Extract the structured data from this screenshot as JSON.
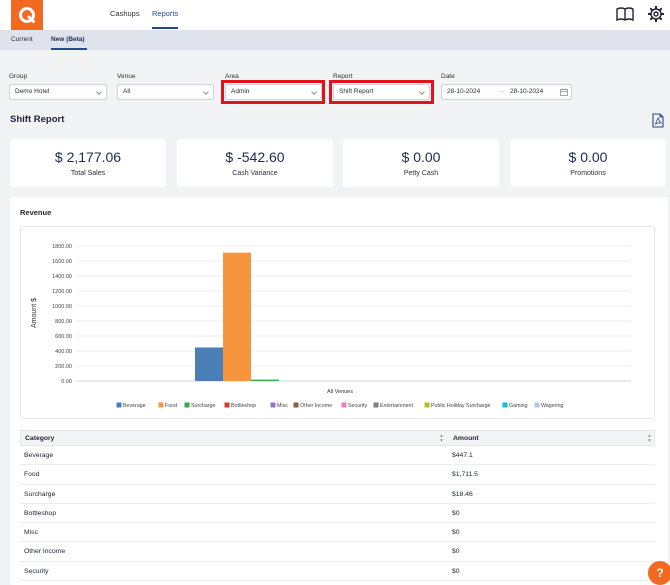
{
  "nav": {
    "items": [
      {
        "label": "Cashups"
      },
      {
        "label": "Reports"
      }
    ]
  },
  "subtabs": [
    {
      "label": "Current"
    },
    {
      "label": "New (Beta)"
    }
  ],
  "filters": {
    "group": {
      "label": "Group",
      "value": "Demo Hotel"
    },
    "venue": {
      "label": "Venue",
      "value": "All"
    },
    "area": {
      "label": "Area",
      "value": "Admin"
    },
    "report": {
      "label": "Report",
      "value": "Shift Report"
    },
    "date": {
      "label": "Date",
      "from": "28-10-2024",
      "arrow": "→",
      "to": "28-10-2024"
    }
  },
  "report_title": "Shift Report",
  "kpis": [
    {
      "value": "$ 2,177.06",
      "label": "Total Sales"
    },
    {
      "value": "$ -542.60",
      "label": "Cash Variance"
    },
    {
      "value": "$ 0.00",
      "label": "Petty Cash"
    },
    {
      "value": "$ 0.00",
      "label": "Promotions"
    }
  ],
  "revenue": {
    "title": "Revenue",
    "table": {
      "headers": [
        "Category",
        "Amount"
      ],
      "rows": [
        [
          "Beverage",
          "$447.1"
        ],
        [
          "Food",
          "$1,711.5"
        ],
        [
          "Surcharge",
          "$18.46"
        ],
        [
          "Bottleshop",
          "$0"
        ],
        [
          "Misc",
          "$0"
        ],
        [
          "Other Income",
          "$0"
        ],
        [
          "Security",
          "$0"
        ]
      ]
    }
  },
  "help_label": "?",
  "chart_data": {
    "type": "bar",
    "categories": [
      "All Venues"
    ],
    "ylabel": "Amount $",
    "xlabel": "All Venues",
    "ylim": [
      0,
      1800
    ],
    "yticks": [
      "0.00",
      "200.00",
      "400.00",
      "600.00",
      "800.00",
      "1000.00",
      "1200.00",
      "1400.00",
      "1600.00",
      "1800.00"
    ],
    "legend_position": "bottom",
    "series": [
      {
        "name": "Beverage",
        "values": [
          447.1
        ],
        "color": "#4a7fb5"
      },
      {
        "name": "Food",
        "values": [
          1711.5
        ],
        "color": "#f7953f"
      },
      {
        "name": "Surcharge",
        "values": [
          18.46
        ],
        "color": "#3aa84b"
      },
      {
        "name": "Bottleshop",
        "values": [
          0
        ],
        "color": "#d63a35"
      },
      {
        "name": "Misc",
        "values": [
          0
        ],
        "color": "#9b6fc4"
      },
      {
        "name": "Other Income",
        "values": [
          0
        ],
        "color": "#8c5a4b"
      },
      {
        "name": "Security",
        "values": [
          0
        ],
        "color": "#e77fc2"
      },
      {
        "name": "Entertainment",
        "values": [
          0
        ],
        "color": "#7f7f7f"
      },
      {
        "name": "Public Holiday Surcharge",
        "values": [
          0
        ],
        "color": "#bcbd22"
      },
      {
        "name": "Gaming",
        "values": [
          0
        ],
        "color": "#17becf"
      },
      {
        "name": "Wagering",
        "values": [
          0
        ],
        "color": "#aec7e8"
      }
    ]
  }
}
